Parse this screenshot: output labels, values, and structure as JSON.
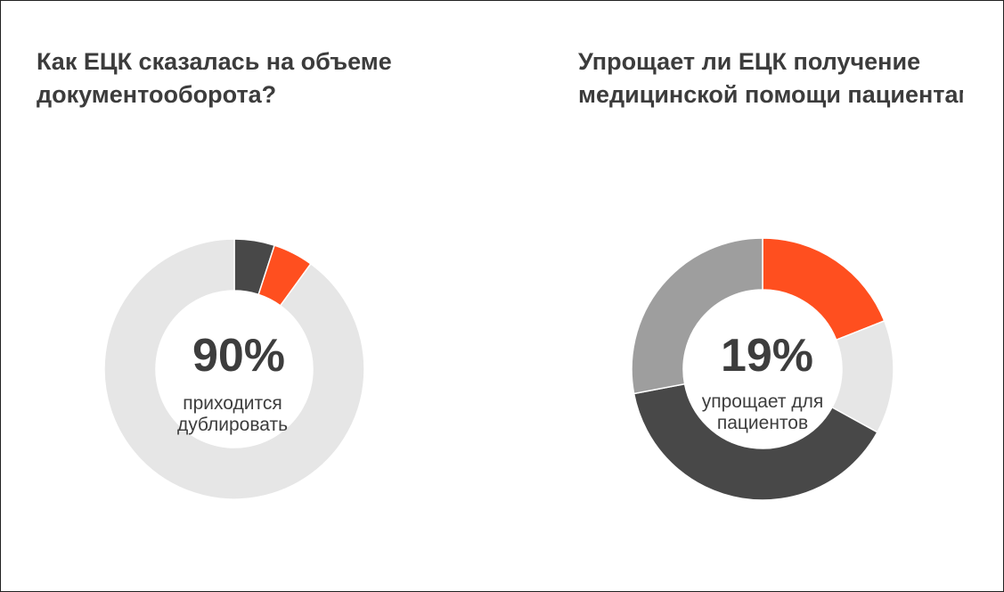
{
  "colors": {
    "orange": "#ff4f1f",
    "light_gray": "#e6e6e6",
    "dark_gray": "#484848",
    "medium_gray": "#9e9e9e"
  },
  "chart_data": [
    {
      "type": "pie",
      "donut": true,
      "title_lines": [
        "Как ЕЦК сказалась на объеме",
        "документооборота?"
      ],
      "center_value": "90%",
      "center_caption_lines": [
        "приходится",
        "дублировать"
      ],
      "values": [
        90,
        5,
        5
      ],
      "slice_order": "clockwise from 12 o'clock: light gray, dark gray, orange",
      "colors": [
        "#e6e6e6",
        "#484848",
        "#ff4f1f"
      ]
    },
    {
      "type": "pie",
      "donut": true,
      "title_lines": [
        "Упрощает ли ЕЦК получение",
        "медицинской помощи пациентам"
      ],
      "center_value": "19%",
      "center_caption_lines": [
        "упрощает для",
        "пациентов"
      ],
      "values": [
        19,
        14,
        39,
        28
      ],
      "slice_order": "clockwise from 12 o'clock: orange, light gray, dark gray, medium gray",
      "colors": [
        "#ff4f1f",
        "#e6e6e6",
        "#484848",
        "#9e9e9e"
      ]
    }
  ]
}
